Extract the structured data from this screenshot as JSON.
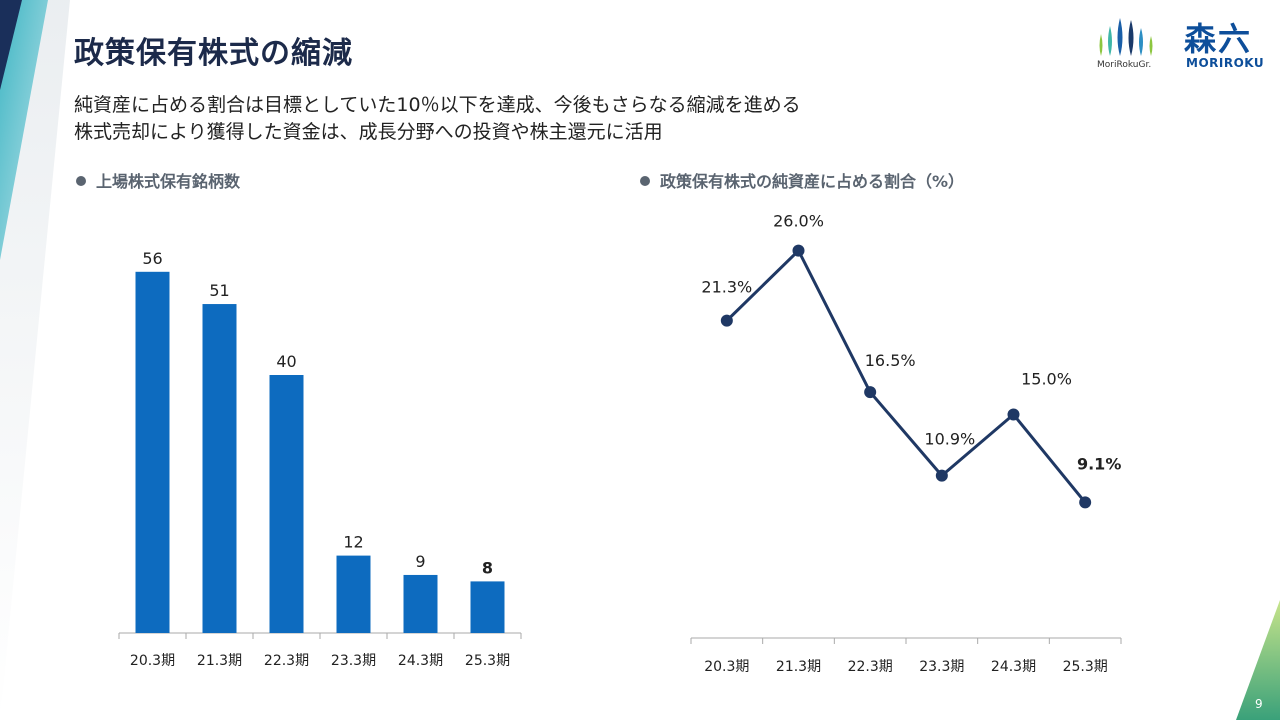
{
  "header": {
    "title": "政策保有株式の縮減",
    "subtitle_1": "純資産に占める割合は目標としていた10％以下を達成、今後もさらなる縮減を進める",
    "subtitle_2": "株式売却により獲得した資金は、成長分野への投資や株主還元に活用"
  },
  "logo": {
    "group_text": "MoriRokuGr.",
    "brand_kanji": "森六",
    "brand_en": "MORIROKU"
  },
  "page_number": "9",
  "colors": {
    "bar": "#0d6bbf",
    "line": "#1f3864",
    "title": "#1c2a4a",
    "section_heading": "#5a6470"
  },
  "chart_data": [
    {
      "type": "bar",
      "title": "上場株式保有銘柄数",
      "categories": [
        "20.3期",
        "21.3期",
        "22.3期",
        "23.3期",
        "24.3期",
        "25.3期"
      ],
      "values": [
        56,
        51,
        40,
        12,
        9,
        8
      ],
      "value_labels": [
        "56",
        "51",
        "40",
        "12",
        "9",
        "8"
      ],
      "highlight_last": true,
      "ylim": [
        0,
        60
      ],
      "grid": false,
      "legend": "none"
    },
    {
      "type": "line",
      "title": "政策保有株式の純資産に占める割合（%）",
      "categories": [
        "20.3期",
        "21.3期",
        "22.3期",
        "23.3期",
        "24.3期",
        "25.3期"
      ],
      "values": [
        21.3,
        26.0,
        16.5,
        10.9,
        15.0,
        9.1
      ],
      "value_labels": [
        "21.3%",
        "26.0%",
        "16.5%",
        "10.9%",
        "15.0%",
        "9.1%"
      ],
      "highlight_last": true,
      "ylim": [
        0,
        30
      ],
      "grid": false,
      "legend": "none"
    }
  ]
}
